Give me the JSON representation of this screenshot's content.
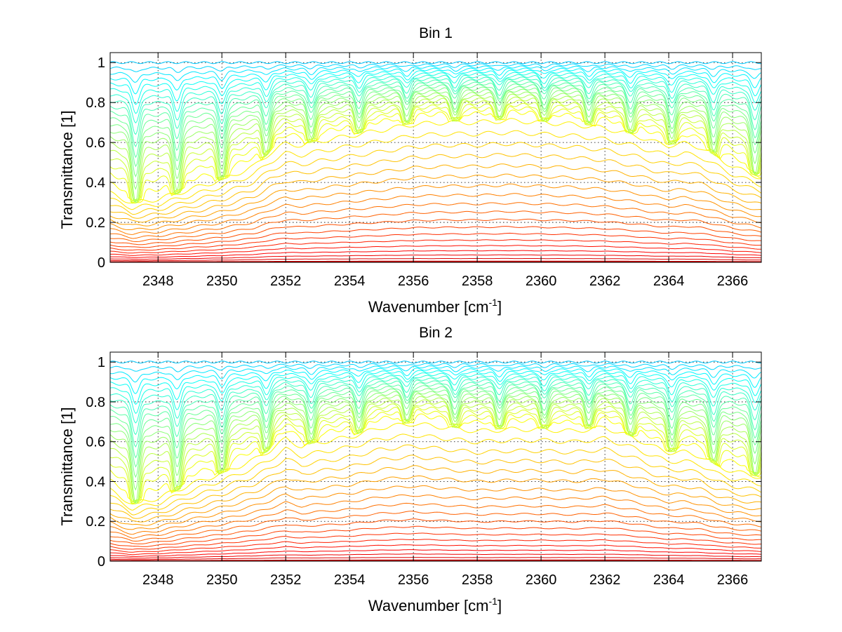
{
  "chart_data": [
    {
      "type": "line",
      "title": "Bin 1",
      "xlabel": "Wavenumber [cm",
      "xlabel_sup": "-1",
      "xlabel_end": "]",
      "ylabel": "Transmittance [1]",
      "xlim": [
        2346.5,
        2366.9
      ],
      "ylim": [
        0,
        1.05
      ],
      "xticks": [
        "2348",
        "2350",
        "2352",
        "2354",
        "2356",
        "2358",
        "2360",
        "2362",
        "2364",
        "2366"
      ],
      "yticks": [
        "0",
        "0.2",
        "0.4",
        "0.6",
        "0.8",
        "1"
      ],
      "grid": true,
      "colormap": "jet",
      "series_count": 40,
      "dips": [
        2347.3,
        2348.6,
        2350.0,
        2351.4,
        2352.8,
        2354.3,
        2355.8,
        2357.3,
        2358.7,
        2360.1,
        2361.5,
        2362.8,
        2364.1,
        2365.4,
        2366.7
      ],
      "envelope": {
        "x": [
          2346.5,
          2347.2,
          2348.0,
          2349.0,
          2350.0,
          2351.0,
          2351.5,
          2352.0,
          2352.5,
          2353.0,
          2354.0,
          2355.0,
          2356.0,
          2357.0,
          2358.0,
          2359.0,
          2360.0,
          2361.0,
          2362.0,
          2363.0,
          2363.5,
          2364.0,
          2364.5,
          2365.0,
          2365.5,
          2366.0,
          2366.9
        ],
        "y": [
          0.36,
          0.31,
          0.33,
          0.38,
          0.43,
          0.5,
          0.57,
          0.62,
          0.61,
          0.63,
          0.66,
          0.69,
          0.72,
          0.73,
          0.73,
          0.74,
          0.73,
          0.72,
          0.7,
          0.66,
          0.63,
          0.61,
          0.62,
          0.6,
          0.55,
          0.5,
          0.44
        ]
      }
    },
    {
      "type": "line",
      "title": "Bin 2",
      "xlabel": "Wavenumber [cm",
      "xlabel_sup": "-1",
      "xlabel_end": "]",
      "ylabel": "Transmittance [1]",
      "xlim": [
        2346.5,
        2366.9
      ],
      "ylim": [
        0,
        1.05
      ],
      "xticks": [
        "2348",
        "2350",
        "2352",
        "2354",
        "2356",
        "2358",
        "2360",
        "2362",
        "2364",
        "2366"
      ],
      "yticks": [
        "0",
        "0.2",
        "0.4",
        "0.6",
        "0.8",
        "1"
      ],
      "grid": true,
      "colormap": "jet",
      "series_count": 40,
      "dips": [
        2347.3,
        2348.6,
        2350.0,
        2351.4,
        2352.8,
        2354.3,
        2355.8,
        2357.3,
        2358.7,
        2360.1,
        2361.5,
        2362.8,
        2364.1,
        2365.4,
        2366.7
      ],
      "envelope": {
        "x": [
          2346.5,
          2347.2,
          2348.0,
          2349.0,
          2350.0,
          2351.0,
          2351.5,
          2352.0,
          2352.5,
          2353.0,
          2354.0,
          2355.0,
          2356.0,
          2357.0,
          2358.0,
          2359.0,
          2360.0,
          2361.0,
          2362.0,
          2363.0,
          2363.5,
          2364.0,
          2364.5,
          2365.0,
          2365.5,
          2366.0,
          2366.9
        ],
        "y": [
          0.37,
          0.3,
          0.33,
          0.4,
          0.46,
          0.53,
          0.58,
          0.64,
          0.6,
          0.62,
          0.65,
          0.7,
          0.72,
          0.7,
          0.68,
          0.69,
          0.69,
          0.68,
          0.7,
          0.64,
          0.6,
          0.57,
          0.57,
          0.55,
          0.5,
          0.47,
          0.44
        ]
      }
    }
  ]
}
